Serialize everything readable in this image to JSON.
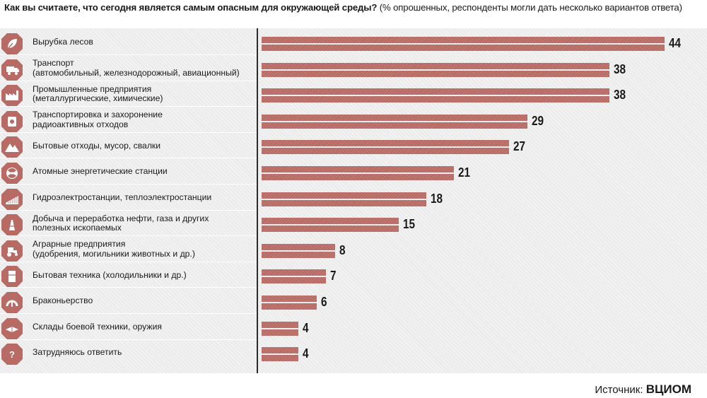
{
  "title": {
    "question": "Как вы считаете, что сегодня является самым опасным для окружающей среды?",
    "note": "(% опрошенных, респонденты могли дать несколько вариантов ответа)"
  },
  "source": {
    "prefix": "Источник:",
    "name": "ВЦИОМ"
  },
  "colors": {
    "bar": "#b86a64",
    "icon": "#b86a64",
    "background": "#ececec"
  },
  "chart_data": {
    "type": "bar",
    "orientation": "horizontal",
    "title": "Как вы считаете, что сегодня является самым опасным для окружающей среды?",
    "subtitle": "(% опрошенных, респонденты могли дать несколько вариантов ответа)",
    "unit": "%",
    "xlim": [
      0,
      44
    ],
    "grid": false,
    "categories": [
      {
        "lines": [
          "Вырубка лесов"
        ],
        "icon": "leaf-icon"
      },
      {
        "lines": [
          "Транспорт",
          "(автомобильный, железнодорожный, авиационный)"
        ],
        "icon": "truck-icon"
      },
      {
        "lines": [
          "Промышленные предприятия",
          "(металлургические, химические)"
        ],
        "icon": "factory-icon"
      },
      {
        "lines": [
          "Транспортировка и захоронение",
          "радиоактивных отходов"
        ],
        "icon": "radioactive-barrel-icon"
      },
      {
        "lines": [
          "Бытовые отходы, мусор, свалки"
        ],
        "icon": "garbage-pile-icon"
      },
      {
        "lines": [
          "Атомные энергетические станции"
        ],
        "icon": "radiation-icon"
      },
      {
        "lines": [
          "Гидроэлектростанции, теплоэлектростанции"
        ],
        "icon": "dam-icon"
      },
      {
        "lines": [
          "Добыча и переработка нефти, газа и других",
          "полезных ископаемых"
        ],
        "icon": "oil-rig-icon"
      },
      {
        "lines": [
          "Аграрные предприятия",
          "(удобрения, могильники животных и др.)"
        ],
        "icon": "tractor-icon"
      },
      {
        "lines": [
          "Бытовая техника (холодильники и др.)"
        ],
        "icon": "refrigerator-icon"
      },
      {
        "lines": [
          "Браконьерство"
        ],
        "icon": "trap-icon"
      },
      {
        "lines": [
          "Склады боевой техники, оружия"
        ],
        "icon": "weapon-icon"
      },
      {
        "lines": [
          "Затрудняюсь ответить"
        ],
        "icon": "question-icon"
      }
    ],
    "values": [
      44,
      38,
      38,
      29,
      27,
      21,
      18,
      15,
      8,
      7,
      6,
      4,
      4
    ]
  }
}
